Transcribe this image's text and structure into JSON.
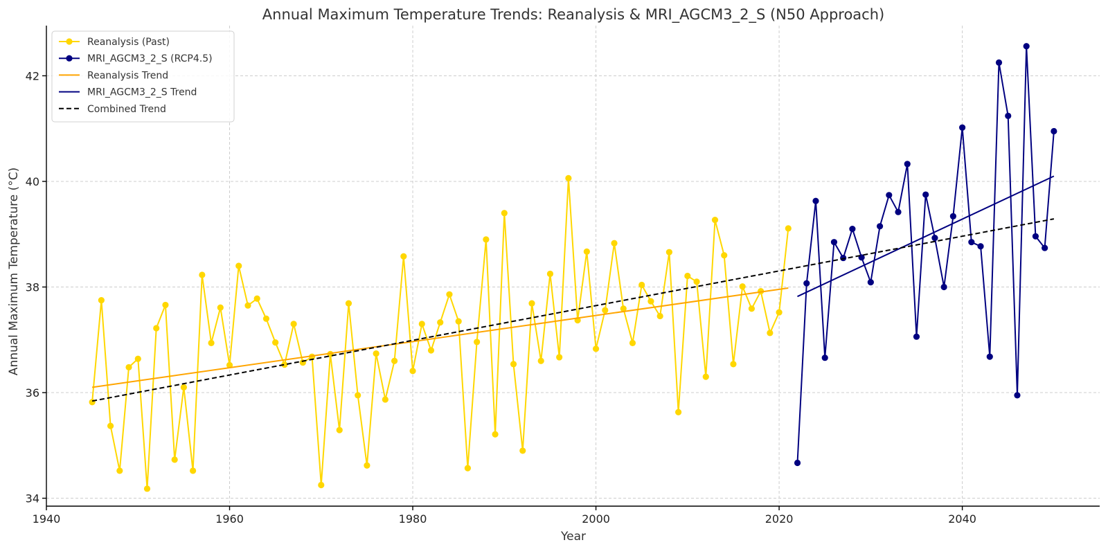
{
  "chart_data": {
    "type": "line",
    "title": "Annual Maximum Temperature Trends: Reanalysis & MRI_AGCM3_2_S (N50 Approach)",
    "xlabel": "Year",
    "ylabel": "Annual Maximum Temperature (°C)",
    "xlim": [
      1940,
      2055
    ],
    "ylim": [
      33.85,
      42.95
    ],
    "xticks": [
      1940,
      1960,
      1980,
      2000,
      2020,
      2040
    ],
    "yticks": [
      34,
      36,
      38,
      40,
      42
    ],
    "grid": true,
    "legend_position": "top-left",
    "series": [
      {
        "name": "Reanalysis (Past)",
        "color": "#FFD700",
        "marker": "circle",
        "x": [
          1945,
          1946,
          1947,
          1948,
          1949,
          1950,
          1951,
          1952,
          1953,
          1954,
          1955,
          1956,
          1957,
          1958,
          1959,
          1960,
          1961,
          1962,
          1963,
          1964,
          1965,
          1966,
          1967,
          1968,
          1969,
          1970,
          1971,
          1972,
          1973,
          1974,
          1975,
          1976,
          1977,
          1978,
          1979,
          1980,
          1981,
          1982,
          1983,
          1984,
          1985,
          1986,
          1987,
          1988,
          1989,
          1990,
          1991,
          1992,
          1993,
          1994,
          1995,
          1996,
          1997,
          1998,
          1999,
          2000,
          2001,
          2002,
          2003,
          2004,
          2005,
          2006,
          2007,
          2008,
          2009,
          2010,
          2011,
          2012,
          2013,
          2014,
          2015,
          2016,
          2017,
          2018,
          2019,
          2020,
          2021
        ],
        "y": [
          35.82,
          37.75,
          35.37,
          34.52,
          36.48,
          36.64,
          34.18,
          37.22,
          37.66,
          34.73,
          36.1,
          34.52,
          38.23,
          36.94,
          37.61,
          36.52,
          38.4,
          37.65,
          37.78,
          37.4,
          36.95,
          36.53,
          37.3,
          36.57,
          36.68,
          34.25,
          36.73,
          35.29,
          37.69,
          35.95,
          34.62,
          36.74,
          35.87,
          36.6,
          38.58,
          36.41,
          37.3,
          36.8,
          37.33,
          37.86,
          37.35,
          34.57,
          36.96,
          38.9,
          35.21,
          39.4,
          36.54,
          34.9,
          37.69,
          36.6,
          38.25,
          36.67,
          40.06,
          37.37,
          38.67,
          36.83,
          37.56,
          38.83,
          37.59,
          36.94,
          38.04,
          37.73,
          37.45,
          38.66,
          35.63,
          38.21,
          38.1,
          36.3,
          39.27,
          38.6,
          36.54,
          38.01,
          37.59,
          37.92,
          37.13,
          37.52,
          39.11
        ]
      },
      {
        "name": "MRI_AGCM3_2_S (RCP4.5)",
        "color": "#000080",
        "marker": "circle",
        "x": [
          2022,
          2023,
          2024,
          2025,
          2026,
          2027,
          2028,
          2029,
          2030,
          2031,
          2032,
          2033,
          2034,
          2035,
          2036,
          2037,
          2038,
          2039,
          2040,
          2041,
          2042,
          2043,
          2044,
          2045,
          2046,
          2047,
          2048,
          2049,
          2050
        ],
        "y": [
          34.67,
          38.07,
          39.63,
          36.66,
          38.85,
          38.55,
          39.1,
          38.56,
          38.09,
          39.15,
          39.74,
          39.42,
          40.33,
          37.06,
          39.75,
          38.93,
          38.0,
          39.34,
          41.02,
          38.85,
          38.77,
          36.68,
          42.25,
          41.24,
          35.95,
          42.56,
          38.96,
          38.74,
          40.95
        ]
      },
      {
        "name": "Reanalysis Trend",
        "color": "#FFA500",
        "x": [
          1945,
          2021
        ],
        "y": [
          36.1,
          37.98
        ]
      },
      {
        "name": "MRI_AGCM3_2_S Trend",
        "color": "#000080",
        "x": [
          2022,
          2050
        ],
        "y": [
          37.82,
          40.1
        ]
      },
      {
        "name": "Combined Trend",
        "color": "#000000",
        "dashed": true,
        "x": [
          1945,
          2050
        ],
        "y": [
          35.84,
          39.29
        ]
      }
    ]
  }
}
